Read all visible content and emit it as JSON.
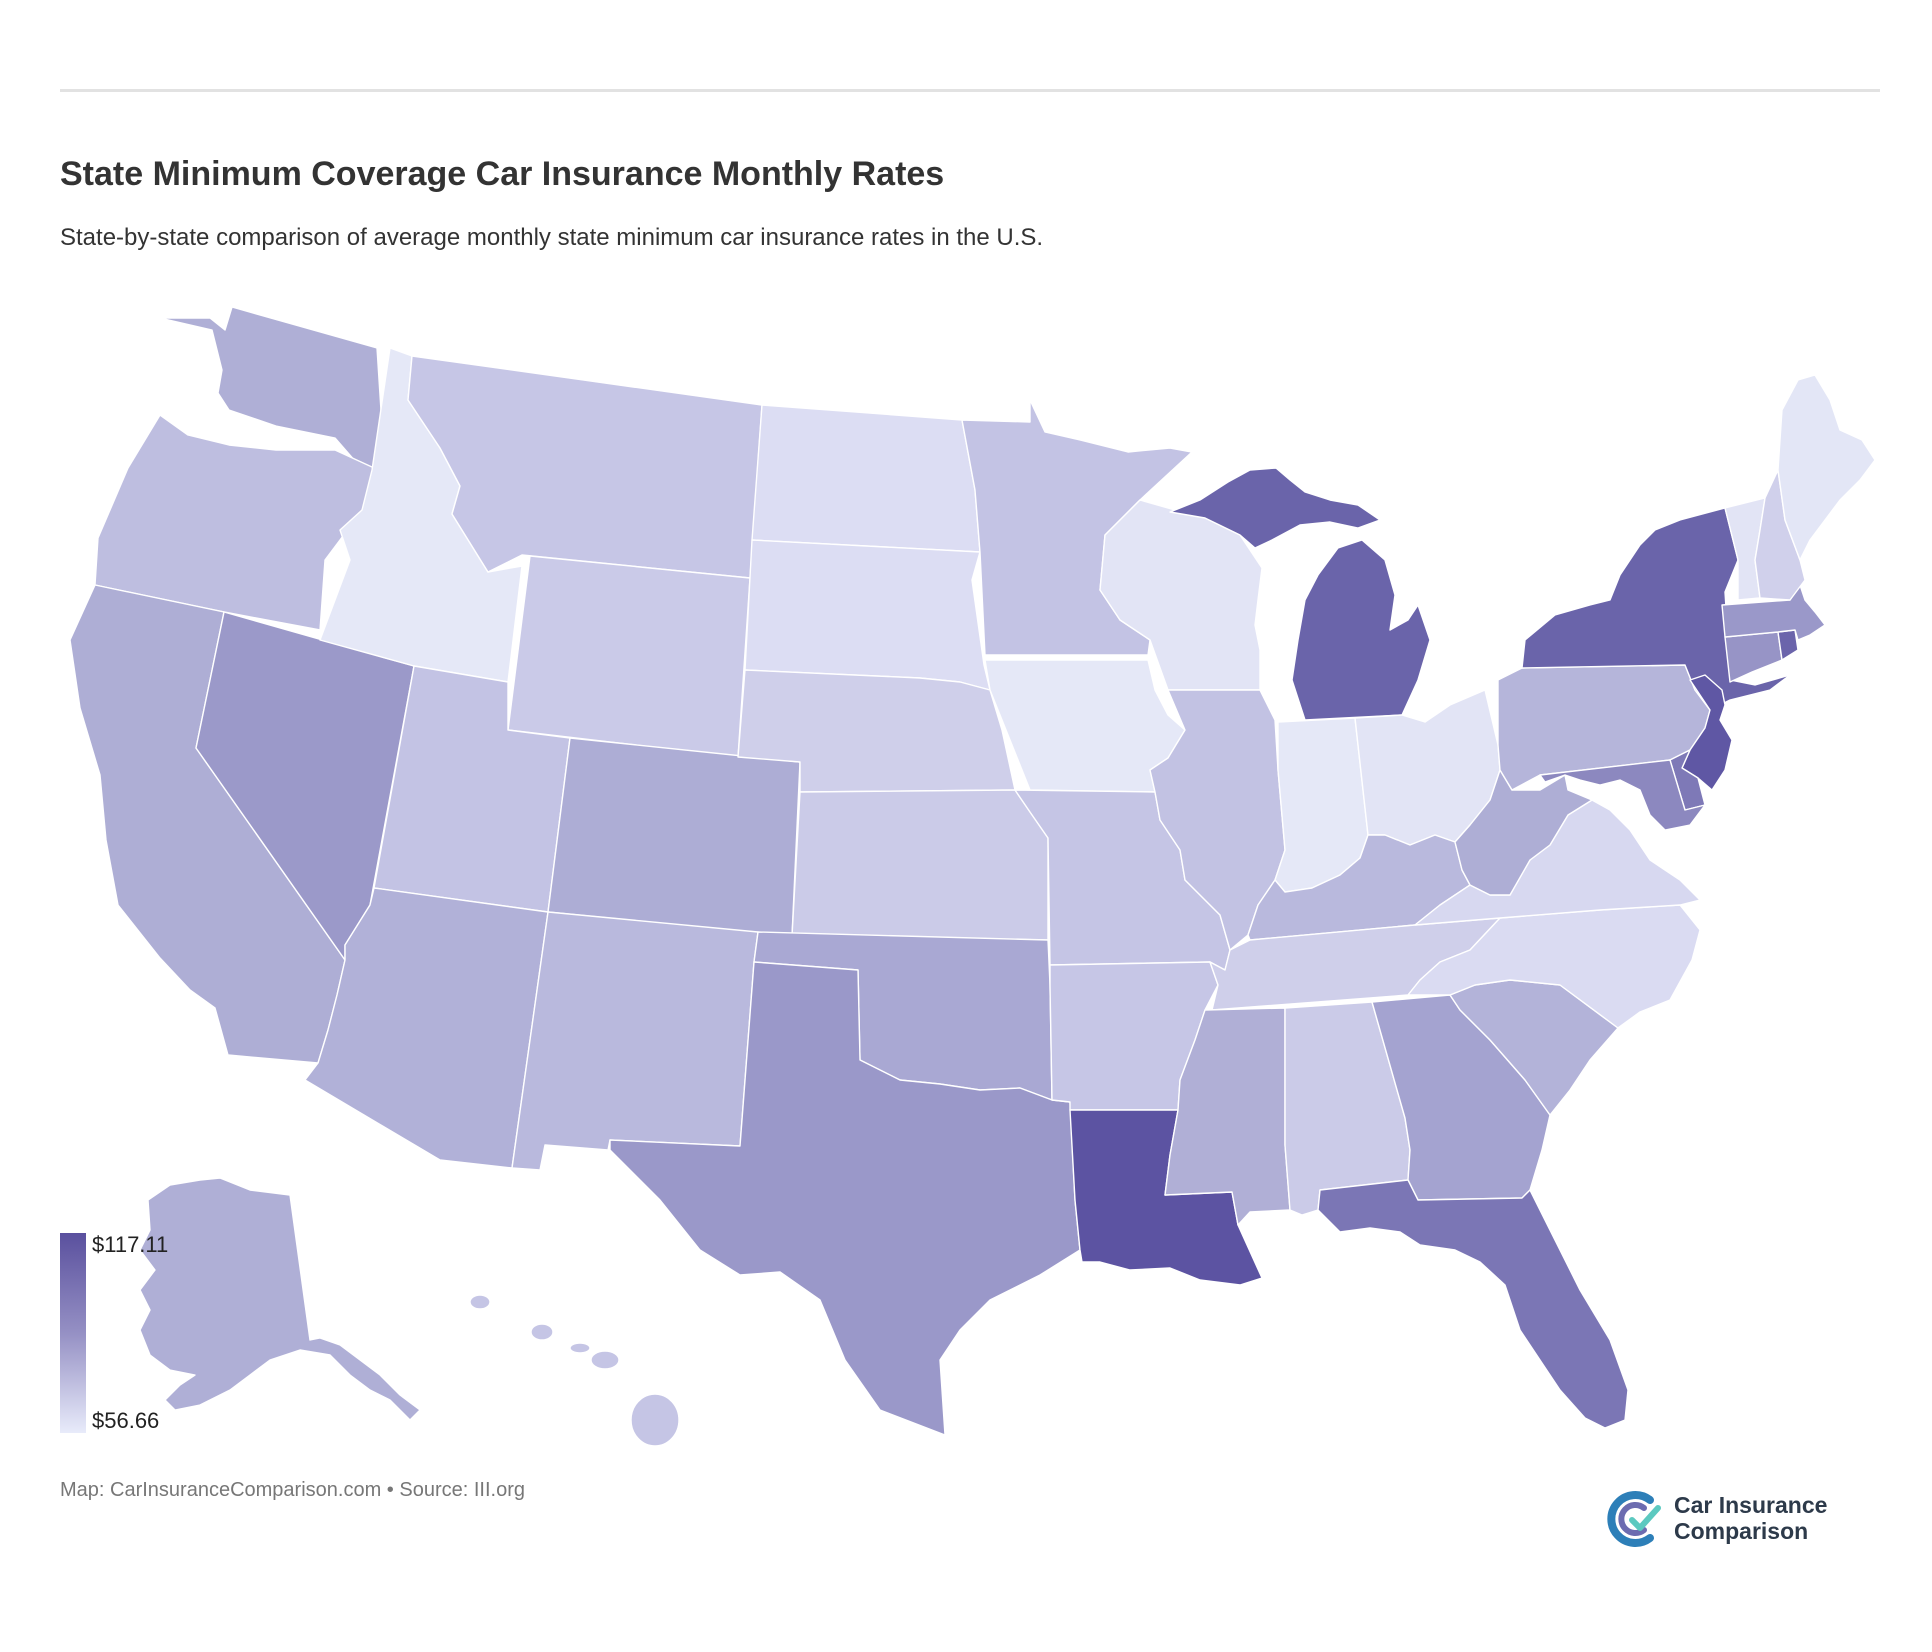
{
  "header": {
    "title": "State Minimum Coverage Car Insurance Monthly Rates",
    "subtitle": "State-by-state comparison of average monthly state minimum car insurance rates in the U.S."
  },
  "legend": {
    "max_label": "$117.11",
    "min_label": "$56.66",
    "color_high": "#5a509e",
    "color_low": "#e8ebfa"
  },
  "footer": {
    "credit": "Map: CarInsuranceComparison.com • Source: III.org"
  },
  "logo": {
    "line1": "Car Insurance",
    "line2": "Comparison"
  },
  "states": [
    {
      "id": "WA",
      "color": "#afafd6"
    },
    {
      "id": "OR",
      "color": "#bebee0"
    },
    {
      "id": "CA",
      "color": "#aeaed5"
    },
    {
      "id": "NV",
      "color": "#9b99c9"
    },
    {
      "id": "ID",
      "color": "#e5e8f7"
    },
    {
      "id": "MT",
      "color": "#c6c6e6"
    },
    {
      "id": "WY",
      "color": "#cacae8"
    },
    {
      "id": "UT",
      "color": "#c3c3e4"
    },
    {
      "id": "AZ",
      "color": "#b1b1d8"
    },
    {
      "id": "CO",
      "color": "#adadd5"
    },
    {
      "id": "NM",
      "color": "#b9b9dd"
    },
    {
      "id": "ND",
      "color": "#dcddf3"
    },
    {
      "id": "SD",
      "color": "#dcddf3"
    },
    {
      "id": "NE",
      "color": "#cfcfea"
    },
    {
      "id": "KS",
      "color": "#cbcbe8"
    },
    {
      "id": "OK",
      "color": "#a9a8d3"
    },
    {
      "id": "TX",
      "color": "#9a98c9"
    },
    {
      "id": "MN",
      "color": "#c3c3e4"
    },
    {
      "id": "IA",
      "color": "#e5e8f7"
    },
    {
      "id": "MO",
      "color": "#c5c5e5"
    },
    {
      "id": "AR",
      "color": "#c6c6e6"
    },
    {
      "id": "LA",
      "color": "#5c53a2"
    },
    {
      "id": "WI",
      "color": "#e2e4f5"
    },
    {
      "id": "IL",
      "color": "#c2c2e3"
    },
    {
      "id": "MI_L",
      "color": "#6a64aa"
    },
    {
      "id": "MI_U",
      "color": "#6a64aa"
    },
    {
      "id": "IN",
      "color": "#e5e8f7"
    },
    {
      "id": "OH",
      "color": "#e2e4f5"
    },
    {
      "id": "KY",
      "color": "#b9b9dd"
    },
    {
      "id": "TN",
      "color": "#cfcfea"
    },
    {
      "id": "MS",
      "color": "#b0afd6"
    },
    {
      "id": "AL",
      "color": "#cbcbe8"
    },
    {
      "id": "GA",
      "color": "#a4a3d0"
    },
    {
      "id": "FL",
      "color": "#7b76b5"
    },
    {
      "id": "SC",
      "color": "#b3b3d9"
    },
    {
      "id": "NC",
      "color": "#dadbf2"
    },
    {
      "id": "VA",
      "color": "#d7d8f0"
    },
    {
      "id": "WV",
      "color": "#aeaed5"
    },
    {
      "id": "PA",
      "color": "#b5b5da"
    },
    {
      "id": "NY",
      "color": "#6a64aa"
    },
    {
      "id": "NJ",
      "color": "#5f57a4"
    },
    {
      "id": "DE",
      "color": "#7e79b7"
    },
    {
      "id": "MD",
      "color": "#8c88bf"
    },
    {
      "id": "CT",
      "color": "#9794c6"
    },
    {
      "id": "RI",
      "color": "#6b64ab"
    },
    {
      "id": "MA",
      "color": "#9a98c9"
    },
    {
      "id": "VT",
      "color": "#e2e4f5"
    },
    {
      "id": "NH",
      "color": "#d0d0eb"
    },
    {
      "id": "ME",
      "color": "#e3e6f6"
    },
    {
      "id": "AK",
      "color": "#afafd6"
    },
    {
      "id": "HI",
      "color": "#c5c5e5"
    }
  ]
}
